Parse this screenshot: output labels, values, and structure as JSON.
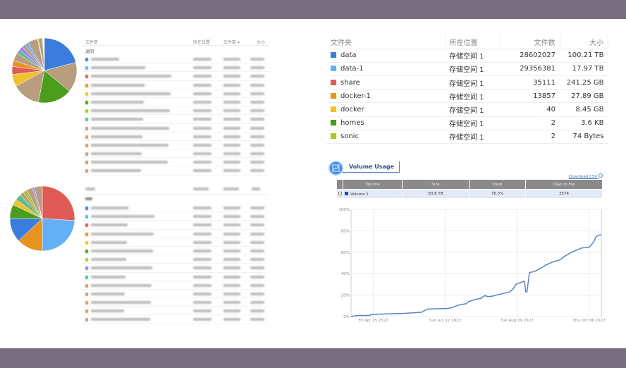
{
  "top_tables": [
    {
      "headers": {
        "folder": "文件夹",
        "location": "所在位置",
        "files": "文件数 ▾",
        "size": "大小"
      },
      "back": "返回",
      "row_colors": [
        "#3b7ddd",
        "#64b0f7",
        "#e05a56",
        "#e8921f",
        "#f0c12a",
        "#4a9e1c",
        "#a5c82a",
        "#5bbd8e",
        "#c4a07a",
        "#c4a07a",
        "#c4a07a",
        "#c4a07a",
        "#c4a07a",
        "#c4a07a"
      ]
    },
    {
      "row_colors": [
        "#3b7ddd",
        "#64b0f7",
        "#e05a56",
        "#e8921f",
        "#f0c12a",
        "#4a9e1c",
        "#a5c82a",
        "#a57ef0",
        "#5bbd8e",
        "#c4a07a",
        "#c4a07a",
        "#c4a07a",
        "#c4a07a",
        "#c4a07a"
      ]
    }
  ],
  "pies": [
    {
      "slices": [
        {
          "color": "#3b7ddd",
          "fraction": 0.21
        },
        {
          "color": "#b89d7e",
          "fraction": 0.15
        },
        {
          "color": "#4a9e1c",
          "fraction": 0.17
        },
        {
          "color": "#b89d7e",
          "fraction": 0.14
        },
        {
          "color": "#f0c12a",
          "fraction": 0.06
        },
        {
          "color": "#e05a56",
          "fraction": 0.04
        },
        {
          "color": "#e8921f",
          "fraction": 0.03
        },
        {
          "color": "#b89d7e",
          "fraction": 0.04
        },
        {
          "color": "#5bbd8e",
          "fraction": 0.02
        },
        {
          "color": "#a57ef0",
          "fraction": 0.02
        },
        {
          "color": "#b89d7e",
          "fraction": 0.02
        },
        {
          "color": "#64b0f7",
          "fraction": 0.015
        },
        {
          "color": "#b89d7e",
          "fraction": 0.05
        },
        {
          "color": "#a5c82a",
          "fraction": 0.005
        },
        {
          "color": "#b89d7e",
          "fraction": 0.02
        }
      ]
    },
    {
      "slices": [
        {
          "color": "#e05a56",
          "fraction": 0.26
        },
        {
          "color": "#64b0f7",
          "fraction": 0.24
        },
        {
          "color": "#e8921f",
          "fraction": 0.13
        },
        {
          "color": "#3b7ddd",
          "fraction": 0.12
        },
        {
          "color": "#4a9e1c",
          "fraction": 0.07
        },
        {
          "color": "#f0c12a",
          "fraction": 0.03
        },
        {
          "color": "#5bbd8e",
          "fraction": 0.03
        },
        {
          "color": "#b89d7e",
          "fraction": 0.02
        },
        {
          "color": "#a5c82a",
          "fraction": 0.02
        },
        {
          "color": "#b89d7e",
          "fraction": 0.03
        },
        {
          "color": "#a57ef0",
          "fraction": 0.01
        },
        {
          "color": "#b89d7e",
          "fraction": 0.04
        }
      ]
    }
  ],
  "folder_table": {
    "headers": {
      "folder": "文件夹",
      "location": "所在位置",
      "files": "文件数",
      "size": "大小"
    },
    "rows": [
      {
        "name": "data",
        "color": "#3b7ddd",
        "location": "存储空间 1",
        "files": "28602027",
        "size": "100.21 TB"
      },
      {
        "name": "data-1",
        "color": "#64b0f7",
        "location": "存储空间 1",
        "files": "29356381",
        "size": "17.97 TB"
      },
      {
        "name": "share",
        "color": "#e05a56",
        "location": "存储空间 1",
        "files": "35111",
        "size": "241.25 GB"
      },
      {
        "name": "docker-1",
        "color": "#e8921f",
        "location": "存储空间 1",
        "files": "13857",
        "size": "27.89 GB"
      },
      {
        "name": "docker",
        "color": "#f0c12a",
        "location": "存储空间 1",
        "files": "40",
        "size": "8.45 GB"
      },
      {
        "name": "homes",
        "color": "#4a9e1c",
        "location": "存储空间 1",
        "files": "2",
        "size": "3.6 KB"
      },
      {
        "name": "sonic",
        "color": "#a5c82a",
        "location": "存储空间 1",
        "files": "2",
        "size": "74 Bytes"
      }
    ]
  },
  "volume_usage": {
    "title": "Volume Usage",
    "download": "Download CSV",
    "headers": [
      "Volume",
      "Size",
      "Used",
      "Days to Full"
    ],
    "row": {
      "volume": "Volume 1",
      "size": "83.8 TB",
      "used": "76.3%",
      "days": "3574"
    }
  },
  "chart_data": {
    "type": "line",
    "ylim": [
      0,
      100
    ],
    "yticks": [
      "0%",
      "20%",
      "40%",
      "60%",
      "80%",
      "100%"
    ],
    "xrange": [
      "2022-03-28",
      "2022-10-16"
    ],
    "xticks": [
      {
        "date": "2022-04-15",
        "label": "Fri Apr 15 2022"
      },
      {
        "date": "2022-06-12",
        "label": "Sun Jun 12 2022"
      },
      {
        "date": "2022-08-09",
        "label": "Tue Aug 09 2022"
      },
      {
        "date": "2022-10-06",
        "label": "Thu Oct 06 2022"
      }
    ],
    "grid": true,
    "line_color": "#5b82c9",
    "points": [
      [
        "2022-03-28",
        0
      ],
      [
        "2022-04-02",
        1
      ],
      [
        "2022-04-12",
        1
      ],
      [
        "2022-04-13",
        2
      ],
      [
        "2022-05-10",
        3
      ],
      [
        "2022-05-24",
        4
      ],
      [
        "2022-05-27",
        6
      ],
      [
        "2022-05-29",
        7
      ],
      [
        "2022-06-13",
        7.5
      ],
      [
        "2022-06-16",
        8
      ],
      [
        "2022-06-19",
        9
      ],
      [
        "2022-06-21",
        10
      ],
      [
        "2022-06-24",
        11
      ],
      [
        "2022-06-29",
        12
      ],
      [
        "2022-07-01",
        14
      ],
      [
        "2022-07-04",
        15
      ],
      [
        "2022-07-06",
        16
      ],
      [
        "2022-07-11",
        17
      ],
      [
        "2022-07-13",
        19
      ],
      [
        "2022-07-15",
        19.5
      ],
      [
        "2022-07-16",
        18.5
      ],
      [
        "2022-07-20",
        19
      ],
      [
        "2022-07-23",
        20
      ],
      [
        "2022-07-31",
        22
      ],
      [
        "2022-08-03",
        23
      ],
      [
        "2022-08-06",
        26
      ],
      [
        "2022-08-08",
        30
      ],
      [
        "2022-08-10",
        31
      ],
      [
        "2022-08-15",
        33
      ],
      [
        "2022-08-16",
        23
      ],
      [
        "2022-08-17",
        23
      ],
      [
        "2022-08-19",
        41
      ],
      [
        "2022-08-23",
        42
      ],
      [
        "2022-08-28",
        45
      ],
      [
        "2022-09-01",
        48
      ],
      [
        "2022-09-07",
        51
      ],
      [
        "2022-09-13",
        53
      ],
      [
        "2022-09-16",
        56
      ],
      [
        "2022-09-22",
        60
      ],
      [
        "2022-09-26",
        62
      ],
      [
        "2022-09-30",
        64
      ],
      [
        "2022-10-06",
        64.5
      ],
      [
        "2022-10-08",
        67
      ],
      [
        "2022-10-10",
        70
      ],
      [
        "2022-10-12",
        75
      ],
      [
        "2022-10-16",
        76.5
      ]
    ]
  }
}
